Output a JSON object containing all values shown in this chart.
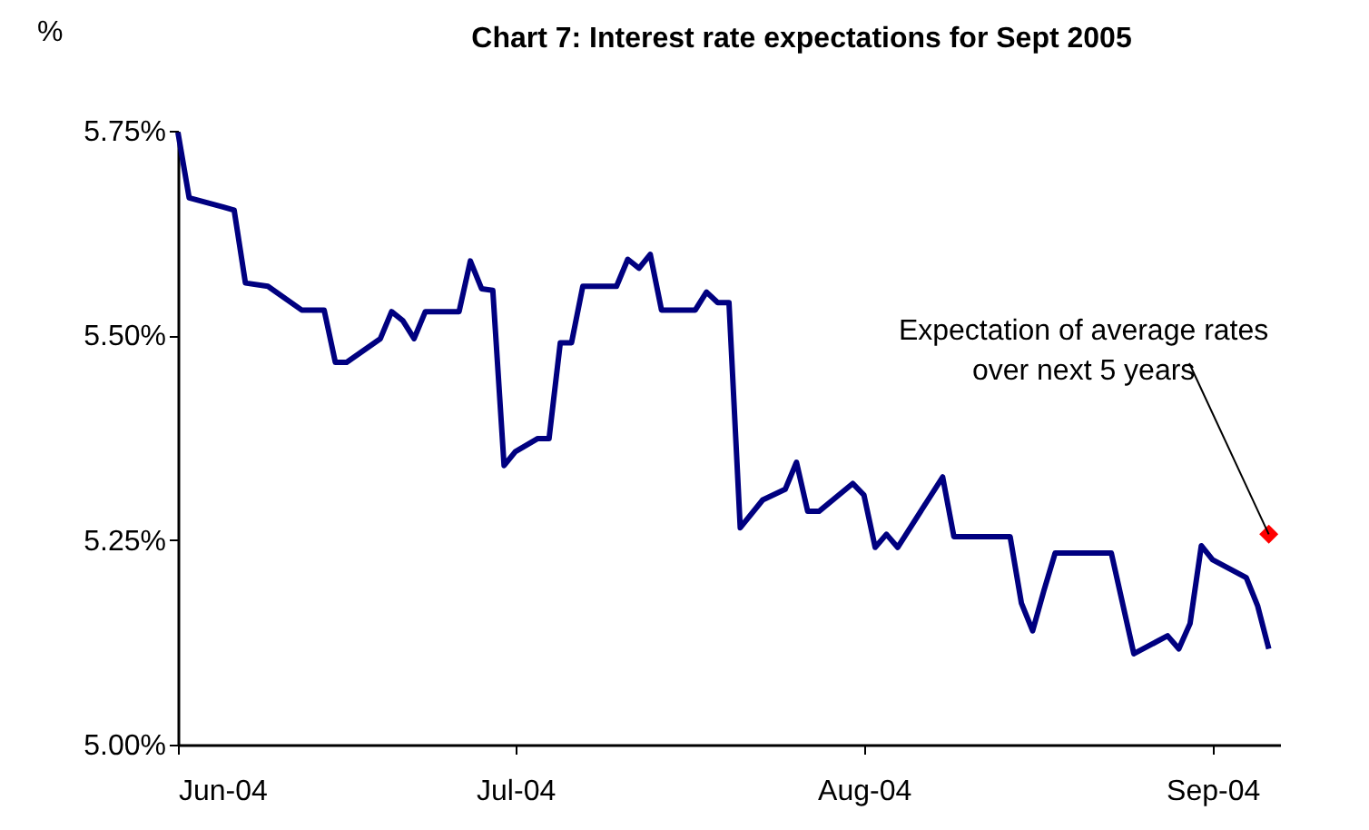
{
  "chart_data": {
    "type": "line",
    "title": "Chart 7: Interest rate expectations for Sept 2005",
    "ylabel": "%",
    "series": [
      {
        "color": "#000080",
        "x": [
          "2004-06-01",
          "2004-06-02",
          "2004-06-05",
          "2004-06-06",
          "2004-06-07",
          "2004-06-09",
          "2004-06-12",
          "2004-06-14",
          "2004-06-15",
          "2004-06-16",
          "2004-06-19",
          "2004-06-20",
          "2004-06-21",
          "2004-06-22",
          "2004-06-23",
          "2004-06-26",
          "2004-06-27",
          "2004-06-28",
          "2004-06-29",
          "2004-06-30",
          "2004-07-01",
          "2004-07-03",
          "2004-07-04",
          "2004-07-05",
          "2004-07-06",
          "2004-07-07",
          "2004-07-10",
          "2004-07-11",
          "2004-07-12",
          "2004-07-13",
          "2004-07-14",
          "2004-07-17",
          "2004-07-18",
          "2004-07-19",
          "2004-07-20",
          "2004-07-21",
          "2004-07-23",
          "2004-07-25",
          "2004-07-26",
          "2004-07-27",
          "2004-07-28",
          "2004-07-31",
          "2004-08-01",
          "2004-08-02",
          "2004-08-03",
          "2004-08-04",
          "2004-08-08",
          "2004-08-09",
          "2004-08-14",
          "2004-08-15",
          "2004-08-16",
          "2004-08-17",
          "2004-08-18",
          "2004-08-23",
          "2004-08-25",
          "2004-08-28",
          "2004-08-29",
          "2004-08-30",
          "2004-08-31",
          "2004-09-01",
          "2004-09-04",
          "2004-09-05",
          "2004-09-06"
        ],
        "values": [
          5.748,
          5.668,
          5.657,
          5.653,
          5.564,
          5.56,
          5.531,
          5.531,
          5.467,
          5.467,
          5.496,
          5.529,
          5.518,
          5.496,
          5.529,
          5.529,
          5.591,
          5.557,
          5.555,
          5.341,
          5.358,
          5.374,
          5.374,
          5.491,
          5.491,
          5.56,
          5.56,
          5.593,
          5.582,
          5.599,
          5.531,
          5.531,
          5.553,
          5.54,
          5.54,
          5.265,
          5.299,
          5.312,
          5.345,
          5.285,
          5.285,
          5.319,
          5.305,
          5.241,
          5.257,
          5.241,
          5.327,
          5.254,
          5.254,
          5.173,
          5.139,
          5.188,
          5.234,
          5.234,
          5.111,
          5.133,
          5.117,
          5.148,
          5.243,
          5.226,
          5.204,
          5.17,
          5.117
        ]
      },
      {
        "type": "scatter",
        "marker": "diamond",
        "color": "#ff0000",
        "x": [
          "2004-09-06"
        ],
        "values": [
          5.257
        ]
      }
    ],
    "xlim": [
      "2004-06-01",
      "2004-09-07"
    ],
    "xticks": [
      {
        "value": "2004-06-01",
        "label": "Jun-04"
      },
      {
        "value": "2004-07-01",
        "label": "Jul-04"
      },
      {
        "value": "2004-08-01",
        "label": "Aug-04"
      },
      {
        "value": "2004-09-01",
        "label": "Sep-04"
      }
    ],
    "ylim": [
      5.0,
      5.75
    ],
    "yticks": [
      {
        "value": 5.0,
        "label": "5.00%"
      },
      {
        "value": 5.25,
        "label": "5.25%"
      },
      {
        "value": 5.5,
        "label": "5.50%"
      },
      {
        "value": 5.75,
        "label": "5.75%"
      }
    ],
    "annotations": [
      {
        "text": "Expectation of average rates\nover next 5 years",
        "x": "2004-09-06",
        "y": 5.257
      }
    ],
    "grid": false,
    "marker": "none",
    "line_style": "solid"
  }
}
